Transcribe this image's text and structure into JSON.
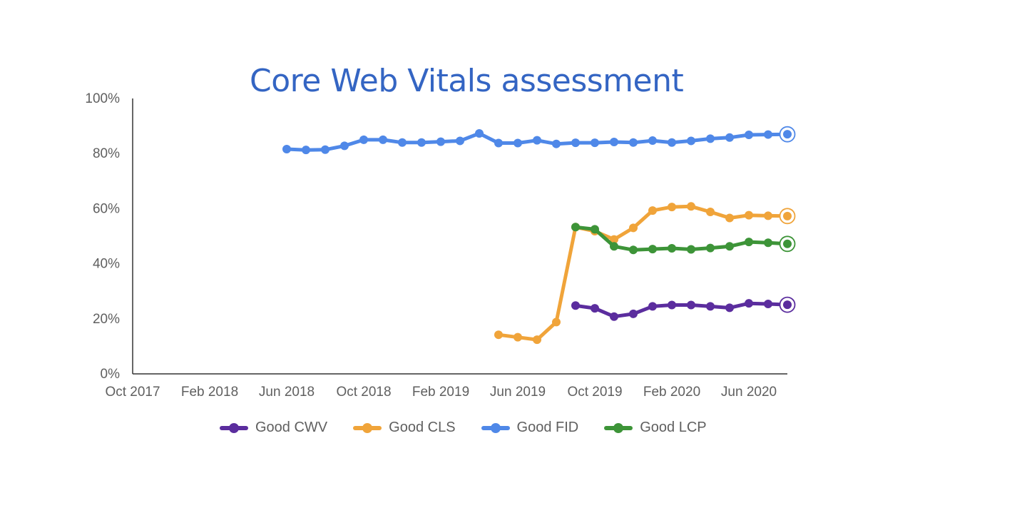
{
  "chart_data": {
    "type": "line",
    "title": "Core Web Vitals assessment",
    "xlabel": "",
    "ylabel": "",
    "ylim": [
      0,
      100
    ],
    "y_ticks": [
      0,
      20,
      40,
      60,
      80,
      100
    ],
    "y_tick_labels": [
      "0%",
      "20%",
      "40%",
      "60%",
      "80%",
      "100%"
    ],
    "x_ticks": [
      "2017-10",
      "2018-02",
      "2018-06",
      "2018-10",
      "2019-02",
      "2019-06",
      "2019-10",
      "2020-02",
      "2020-06"
    ],
    "x_tick_labels": [
      "Oct 2017",
      "Feb 2018",
      "Jun 2018",
      "Oct 2018",
      "Feb 2019",
      "Jun 2019",
      "Oct 2019",
      "Feb 2020",
      "Jun 2020"
    ],
    "xlim": [
      "2017-10",
      "2020-08"
    ],
    "grid": false,
    "legend_position": "bottom",
    "series": [
      {
        "name": "Good CWV",
        "color": "#5b2d9e",
        "x": [
          "2019-09",
          "2019-10",
          "2019-11",
          "2019-12",
          "2020-01",
          "2020-02",
          "2020-03",
          "2020-04",
          "2020-05",
          "2020-06",
          "2020-07",
          "2020-08"
        ],
        "values": [
          24.8,
          23.8,
          20.8,
          21.8,
          24.5,
          25.0,
          25.0,
          24.5,
          24.0,
          25.6,
          25.4,
          25.1
        ]
      },
      {
        "name": "Good CLS",
        "color": "#f0a43a",
        "x": [
          "2019-05",
          "2019-06",
          "2019-07",
          "2019-08",
          "2019-09",
          "2019-10",
          "2019-11",
          "2019-12",
          "2020-01",
          "2020-02",
          "2020-03",
          "2020-04",
          "2020-05",
          "2020-06",
          "2020-07",
          "2020-08"
        ],
        "values": [
          14.2,
          13.3,
          12.4,
          18.8,
          53.3,
          51.8,
          48.8,
          53.0,
          59.3,
          60.6,
          60.8,
          58.8,
          56.6,
          57.6,
          57.4,
          57.3
        ]
      },
      {
        "name": "Good FID",
        "color": "#4f88e8",
        "x": [
          "2018-06",
          "2018-07",
          "2018-08",
          "2018-09",
          "2018-10",
          "2018-11",
          "2018-12",
          "2019-01",
          "2019-02",
          "2019-03",
          "2019-04",
          "2019-05",
          "2019-06",
          "2019-07",
          "2019-08",
          "2019-09",
          "2019-10",
          "2019-11",
          "2019-12",
          "2020-01",
          "2020-02",
          "2020-03",
          "2020-04",
          "2020-05",
          "2020-06",
          "2020-07",
          "2020-08"
        ],
        "values": [
          81.6,
          81.3,
          81.4,
          82.8,
          85.0,
          85.0,
          84.0,
          84.0,
          84.3,
          84.6,
          87.3,
          83.8,
          83.8,
          84.8,
          83.5,
          83.9,
          83.9,
          84.2,
          84.0,
          84.7,
          84.0,
          84.6,
          85.4,
          85.8,
          86.8,
          86.9,
          87.0
        ]
      },
      {
        "name": "Good LCP",
        "color": "#3d9438",
        "x": [
          "2019-09",
          "2019-10",
          "2019-11",
          "2019-12",
          "2020-01",
          "2020-02",
          "2020-03",
          "2020-04",
          "2020-05",
          "2020-06",
          "2020-07",
          "2020-08"
        ],
        "values": [
          53.3,
          52.5,
          46.3,
          45.0,
          45.3,
          45.6,
          45.2,
          45.7,
          46.3,
          47.9,
          47.6,
          47.2
        ]
      }
    ]
  }
}
